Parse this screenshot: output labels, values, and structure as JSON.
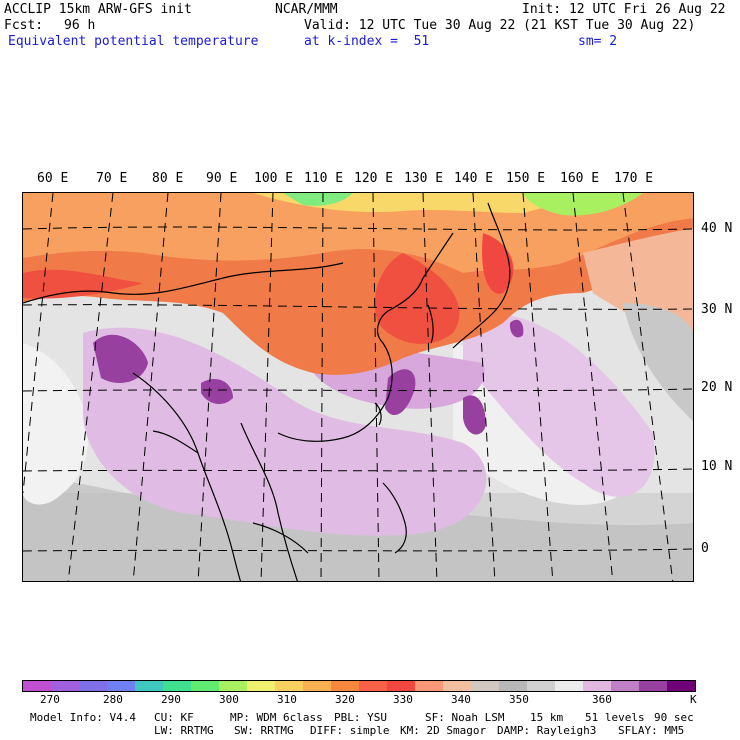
{
  "header": {
    "model": "ACCLIP 15km ARW-GFS init",
    "org": "NCAR/MMM",
    "init": "Init: 12 UTC Fri 26 Aug 22",
    "fcst_label": "Fcst:",
    "fcst_value": "96 h",
    "valid": "Valid: 12 UTC Tue 30 Aug 22 (21 KST Tue 30 Aug 22)",
    "field": "Equivalent potential temperature",
    "level": "at k-index =  51",
    "smooth": "sm= 2"
  },
  "map": {
    "lon_labels": [
      "60 E",
      "70 E",
      "80 E",
      "90 E",
      "100 E",
      "110 E",
      "120 E",
      "130 E",
      "140 E",
      "150 E",
      "160 E",
      "170 E"
    ],
    "lat_labels": [
      "40 N",
      "30 N",
      "20 N",
      "10 N",
      "0"
    ]
  },
  "colorbar": {
    "colors": [
      "#c050d0",
      "#a060e0",
      "#8070e8",
      "#7080f0",
      "#40c8c0",
      "#40e090",
      "#60ec70",
      "#a8f060",
      "#f0f070",
      "#f8d060",
      "#f8b050",
      "#f88840",
      "#f86048",
      "#f04840",
      "#f89878",
      "#f0c0a0",
      "#d0c8c0",
      "#b8b8b8",
      "#d0d0d0",
      "#ececec",
      "#e0b8e0",
      "#c080c8",
      "#9840a0",
      "#700078"
    ],
    "ticks": [
      "270",
      "280",
      "290",
      "300",
      "310",
      "320",
      "330",
      "340",
      "350",
      "360"
    ],
    "unit": "K"
  },
  "footer": {
    "line1": [
      "Model Info: V4.4",
      "CU: KF",
      "MP: WDM 6class",
      "PBL: YSU",
      "SF: Noah LSM",
      "15 km",
      "51 levels",
      "90 sec"
    ],
    "line2": [
      "LW: RRTMG",
      "SW: RRTMG",
      "DIFF: simple",
      "KM: 2D Smagor",
      "DAMP: Rayleigh3",
      "SFLAY: MM5"
    ]
  }
}
